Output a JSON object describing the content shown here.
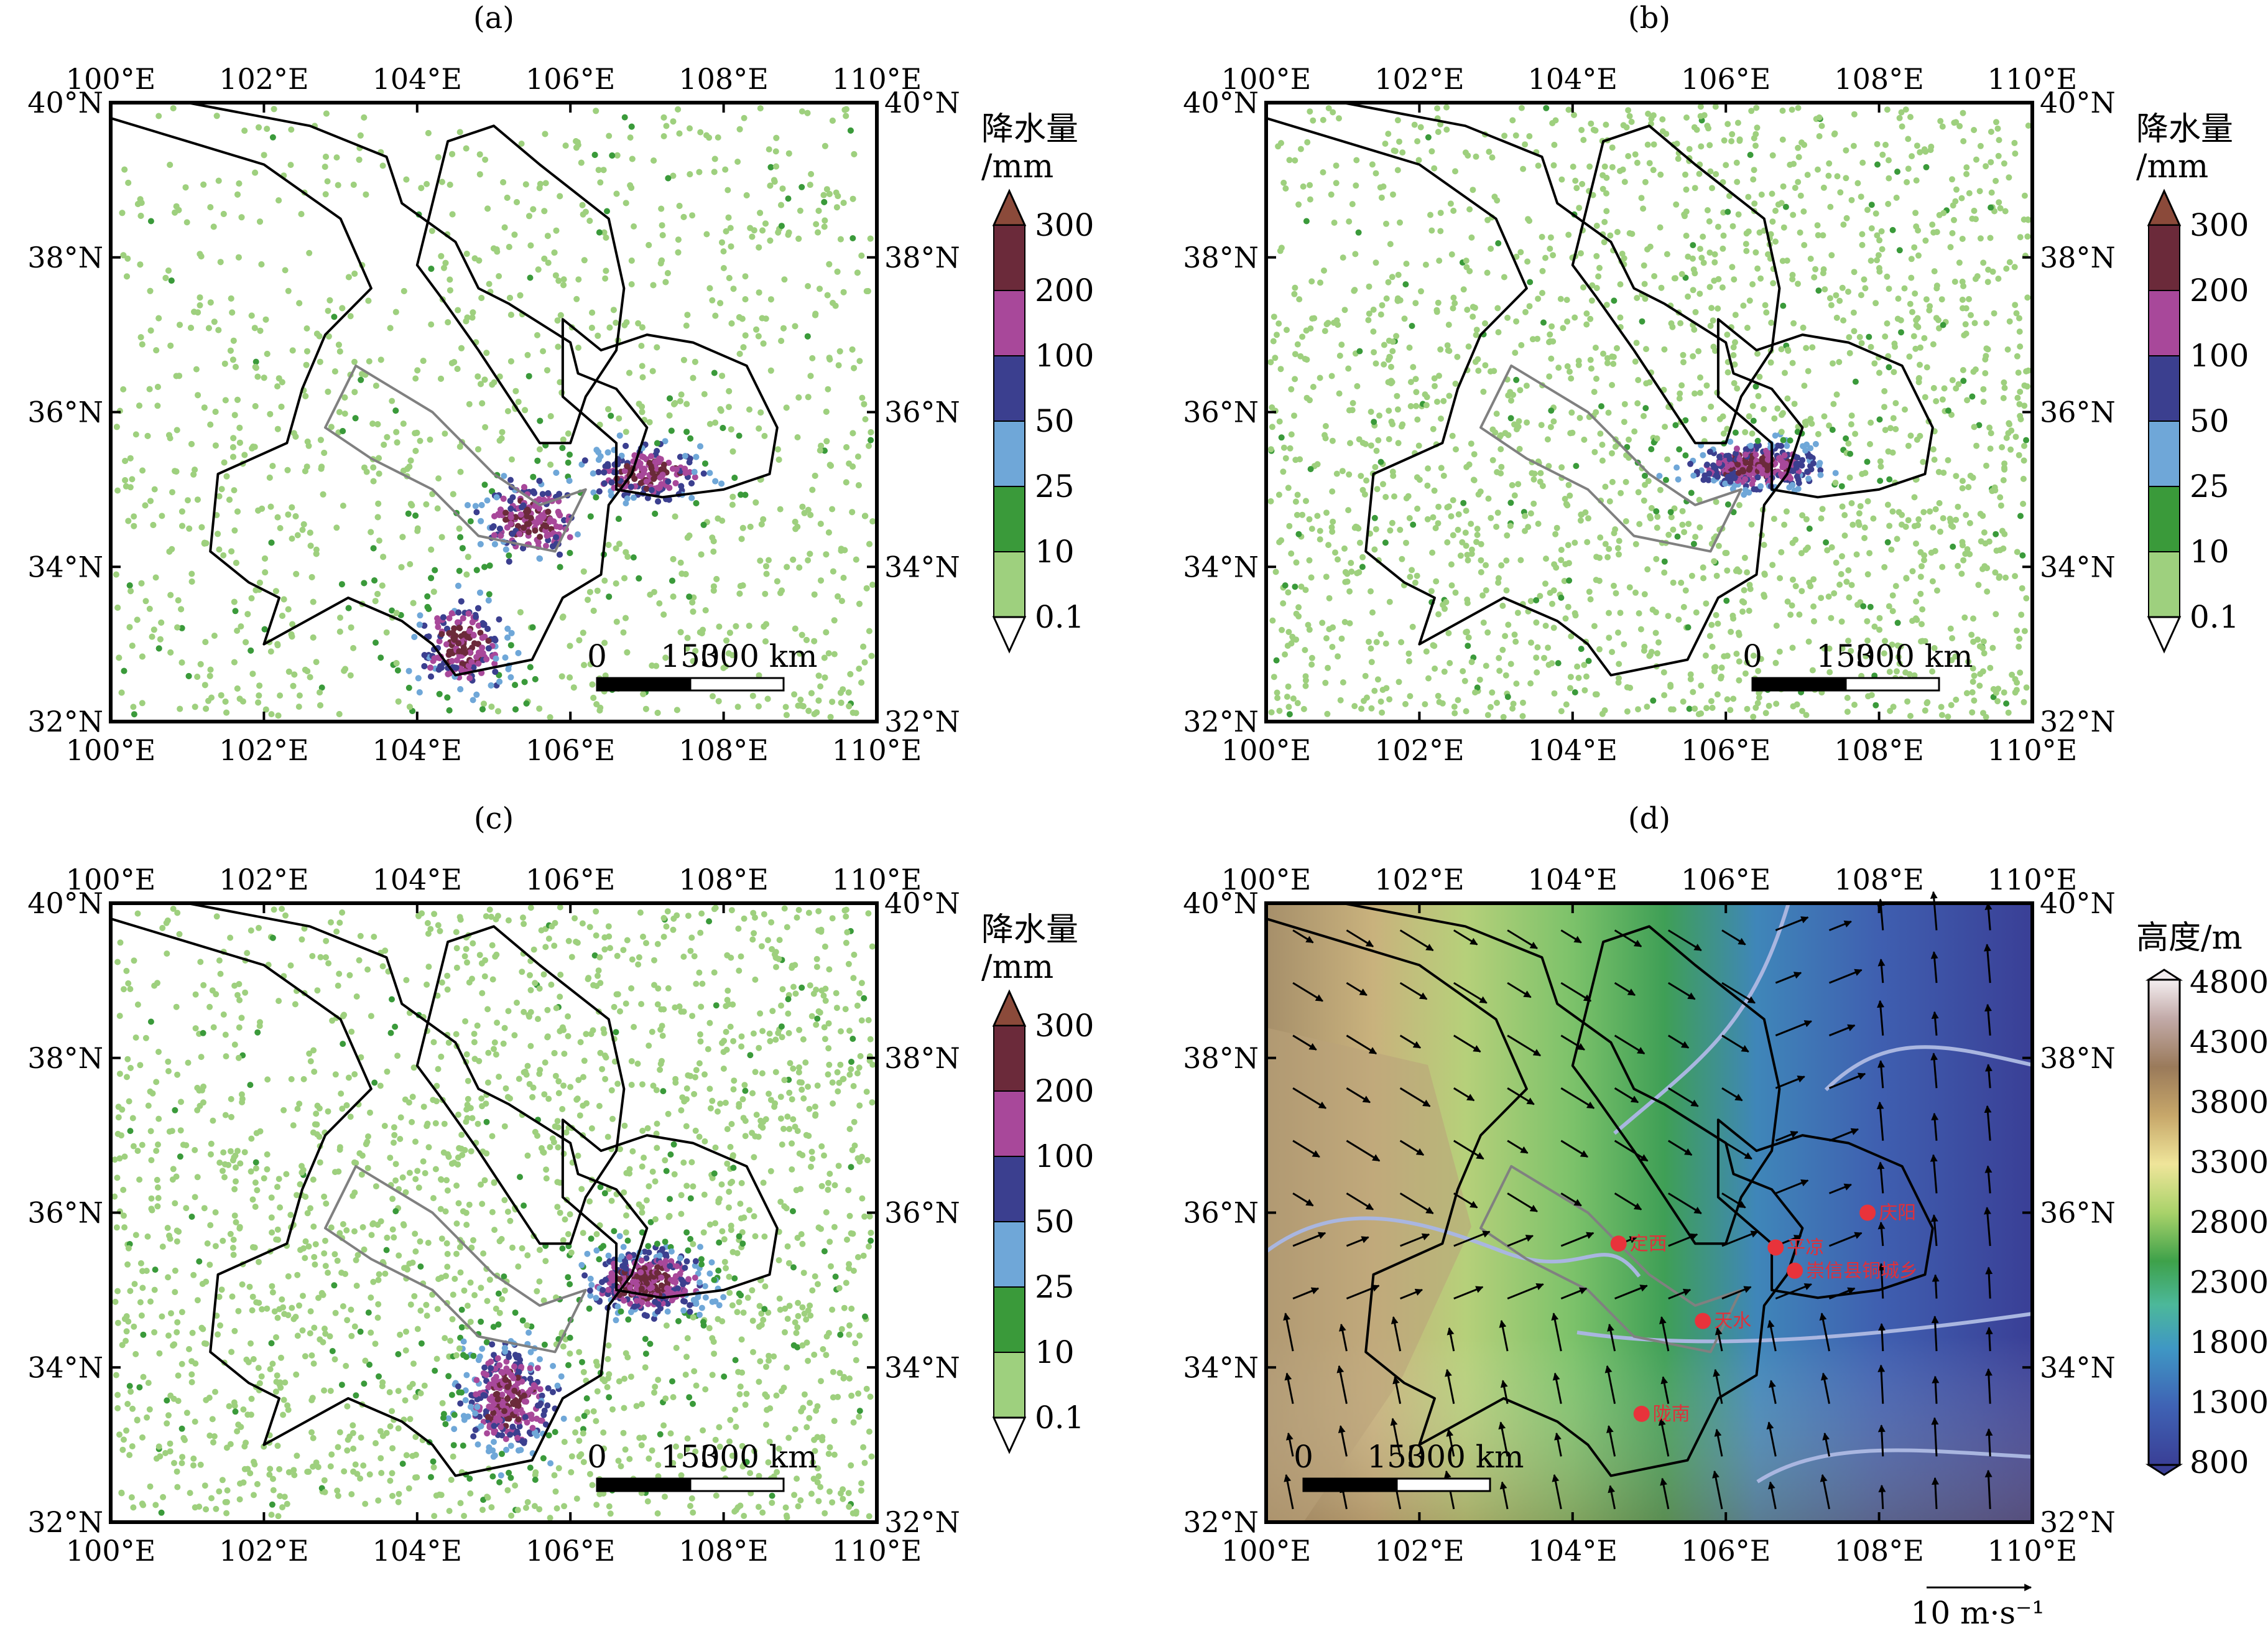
{
  "panels": [
    {
      "id": "a",
      "label": "(a)",
      "type": "precipitation"
    },
    {
      "id": "b",
      "label": "(b)",
      "type": "precipitation"
    },
    {
      "id": "c",
      "label": "(c)",
      "type": "precipitation"
    },
    {
      "id": "d",
      "label": "(d)",
      "type": "elevation"
    }
  ],
  "axes": {
    "lon_ticks": [
      "100°E",
      "102°E",
      "104°E",
      "106°E",
      "108°E",
      "110°E"
    ],
    "lat_ticks": [
      "40°N",
      "38°N",
      "36°N",
      "34°N",
      "32°N"
    ],
    "lon_range": [
      100,
      110
    ],
    "lat_range": [
      32,
      40
    ]
  },
  "precip_colorbar": {
    "title_line1": "降水量",
    "title_line2": "/mm",
    "levels": [
      "300",
      "200",
      "100",
      "50",
      "25",
      "10",
      "0.1"
    ],
    "colors": [
      "#6b2a3a",
      "#a8489a",
      "#3b3f8f",
      "#6fa7d8",
      "#3a9a3a",
      "#9ed07e"
    ],
    "arrow_top": "#8b4a3a"
  },
  "elev_colorbar": {
    "title": "高度/m",
    "levels": [
      "4800",
      "4300",
      "3800",
      "3300",
      "2800",
      "2300",
      "1800",
      "1300",
      "800"
    ]
  },
  "scalebar": {
    "labels": [
      "0",
      "150",
      "300 km"
    ]
  },
  "wind_ref": {
    "label": "10 m·s⁻¹"
  },
  "cities": [
    {
      "name": "庆阳",
      "lon": 107.85,
      "lat": 36.0
    },
    {
      "name": "平凉",
      "lon": 106.65,
      "lat": 35.55
    },
    {
      "name": "崇信县铜城乡",
      "lon": 106.9,
      "lat": 35.25
    },
    {
      "name": "定西",
      "lon": 104.6,
      "lat": 35.6
    },
    {
      "name": "天水",
      "lon": 105.7,
      "lat": 34.6
    },
    {
      "name": "陇南",
      "lon": 104.9,
      "lat": 33.4
    }
  ]
}
